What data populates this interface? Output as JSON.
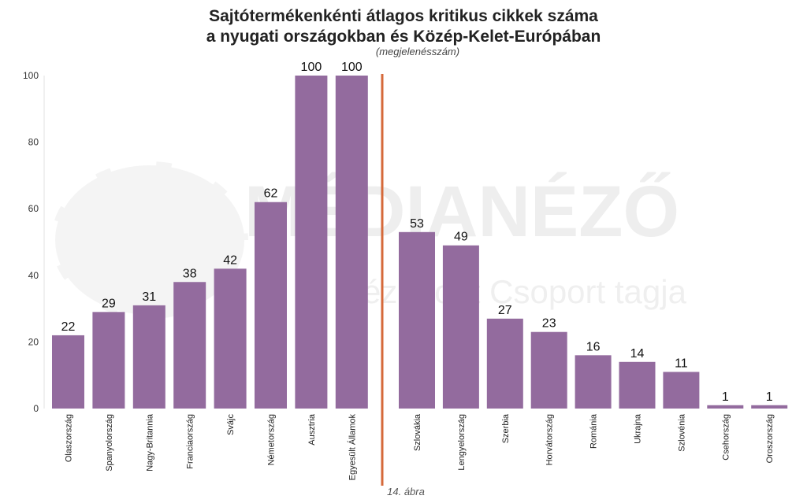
{
  "chart_data": {
    "type": "bar",
    "title_line1": "Sajtótermékenkénti átlagos kritikus cikkek száma",
    "title_line2": "a nyugati országokban és Közép-Kelet-Európában",
    "subtitle": "(megjelenésszám)",
    "caption": "14. ábra",
    "ylim": [
      0,
      100
    ],
    "yticks": [
      0,
      20,
      40,
      60,
      80,
      100
    ],
    "grid": false,
    "legend": "none",
    "bar_color": "#936b9e",
    "divider_color": "#d5693a",
    "categories": [
      "Olaszország",
      "Spanyolország",
      "Nagy-Britannia",
      "Franciaország",
      "Svájc",
      "Németország",
      "Ausztria",
      "Egyesült Államok",
      "Szlovákia",
      "Lengyelország",
      "Szerbia",
      "Horvátország",
      "Románia",
      "Ukrajna",
      "Szlovénia",
      "Csehország",
      "Oroszország"
    ],
    "values": [
      22,
      29,
      31,
      38,
      42,
      62,
      100,
      100,
      53,
      49,
      27,
      23,
      16,
      14,
      11,
      1,
      1
    ],
    "groups": [
      {
        "categories": [
          "Olaszország",
          "Spanyolország",
          "Nagy-Britannia",
          "Franciaország",
          "Svájc",
          "Németország",
          "Ausztria",
          "Egyesült Államok"
        ]
      },
      {
        "categories": [
          "Szlovákia",
          "Lengyelország",
          "Szerbia",
          "Horvátország",
          "Románia",
          "Ukrajna",
          "Szlovénia",
          "Csehország",
          "Oroszország"
        ]
      }
    ]
  },
  "watermark": {
    "brand": "MÉDIANÉZŐ",
    "tagline": "ézőpont Csoport tagja"
  }
}
